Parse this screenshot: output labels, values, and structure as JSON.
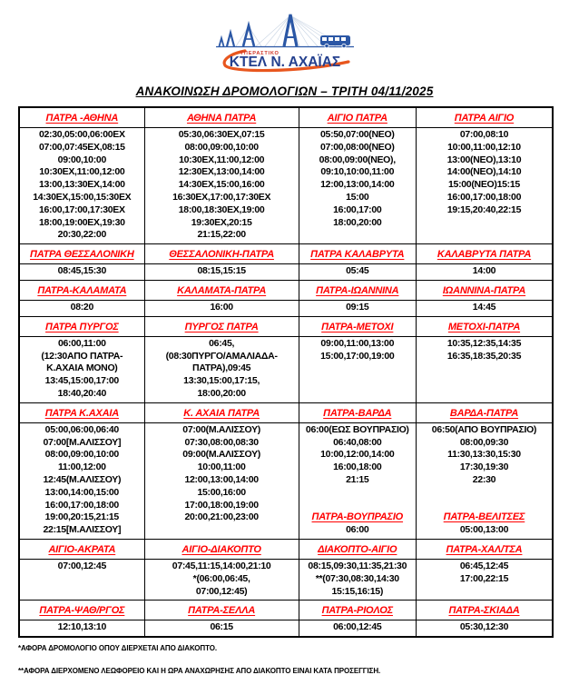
{
  "logo": {
    "small_text": "ΥΠΕΡΑΣΤΙΚΟ",
    "main_text": "ΚΤΕΛ Ν. ΑΧΑΪΑΣ"
  },
  "title": "ΑΝΑΚΟΙΝΩΣΗ ΔΡΟΜΟΛΟΓΙΩΝ – ΤΡΙΤΗ 04/11/2025",
  "colors": {
    "route_red": "#ff0000",
    "text_black": "#000000",
    "logo_blue": "#24408e",
    "logo_light_blue": "#2b57a5",
    "logo_orange": "#e8561e",
    "border_black": "#000000"
  },
  "table": {
    "column_widths_pct": [
      23.5,
      28.9,
      22.0,
      25.6
    ],
    "sections": [
      {
        "headers": [
          "ΠΑΤΡΑ -ΑΘΗΝΑ",
          "ΑΘΗΝΑ ΠΑΤΡΑ",
          "ΑΙΓΙΟ ΠΑΤΡΑ",
          "ΠΑΤΡΑ ΑΙΓΙΟ"
        ],
        "cells": [
          {
            "lines": [
              "02:30,05:00,06:00ΕΧ",
              "07:00,07:45ΕΧ,08:15",
              "09:00,10:00",
              "10:30ΕΧ,11:00,12:00",
              "13:00,13:30ΕΧ,14:00",
              "14:30ΕΧ,15:00,15:30ΕΧ",
              "16:00,17:00,17:30ΕΧ",
              "18:00,19:00ΕΧ,19:30",
              "20:30,22:00"
            ]
          },
          {
            "lines": [
              "05:30,06:30ΕΧ,07:15",
              "08:00,09:00,10:00",
              "10:30ΕΧ,11:00,12:00",
              "12:30ΕΧ,13:00,14:00",
              "14:30ΕΧ,15:00,16:00",
              "16:30ΕΧ,17:00,17:30ΕΧ",
              "18:00,18:30ΕΧ,19:00",
              "19:30ΕΧ,20:15",
              "21:15,22:00"
            ]
          },
          {
            "lines": [
              "05:50,07:00(ΝΕΟ)",
              "07:00,08:00(ΝΕΟ)",
              "08:00,09:00(ΝΕΟ),",
              "09:10,10:00,11:00",
              "12:00,13:00,14:00",
              "15:00",
              "16:00,17:00",
              "18:00,20:00"
            ]
          },
          {
            "lines": [
              "07:00,08:10",
              "10:00,11:00,12:10",
              "13:00(ΝΕΟ),13:10",
              "14:00(ΝΕΟ),14:10",
              "15:00(ΝΕΟ)15:15",
              "16:00,17:00,18:00",
              "19:15,20:40,22:15"
            ]
          }
        ]
      },
      {
        "headers": [
          "ΠΑΤΡΑ ΘΕΣΣΑΛΟΝΙΚΗ",
          "ΘΕΣΣΑΛΟΝΙΚΗ-ΠΑΤΡΑ",
          "ΠΑΤΡΑ ΚΑΛΑΒΡΥΤΑ",
          "ΚΑΛΑΒΡΥΤΑ ΠΑΤΡΑ"
        ],
        "cells": [
          {
            "lines": [
              "08:45,15:30"
            ]
          },
          {
            "lines": [
              "08:15,15:15"
            ]
          },
          {
            "lines": [
              "05:45"
            ]
          },
          {
            "lines": [
              "14:00"
            ]
          }
        ]
      },
      {
        "headers": [
          "ΠΑΤΡΑ-ΚΑΛΑΜΑΤΑ",
          "ΚΑΛΑΜΑΤΑ-ΠΑΤΡΑ",
          "ΠΑΤΡΑ-ΙΩΑΝΝΙΝΑ",
          "ΙΩΑΝΝΙΝΑ-ΠΑΤΡΑ"
        ],
        "cells": [
          {
            "lines": [
              "08:20"
            ]
          },
          {
            "lines": [
              "16:00"
            ]
          },
          {
            "lines": [
              "09:15"
            ]
          },
          {
            "lines": [
              "14:45"
            ]
          }
        ]
      },
      {
        "headers": [
          "ΠΑΤΡΑ ΠΥΡΓΟΣ",
          "ΠΥΡΓΟΣ ΠΑΤΡΑ",
          "ΠΑΤΡΑ-ΜΕΤΟΧΙ",
          "ΜΕΤΟΧΙ-ΠΑΤΡΑ"
        ],
        "cells": [
          {
            "lines": [
              "06:00,11:00",
              "(12:30ΑΠΟ ΠΑΤΡΑ-",
              "Κ.ΑΧΑΙΑ ΜΟΝΟ)",
              "13:45,15:00,17:00",
              "18:40,20:40"
            ]
          },
          {
            "lines": [
              "06:45,",
              "(08:30ΠΥΡΓΟ/ΑΜΑΛΙΑΔΑ-",
              "ΠΑΤΡΑ),09:45",
              "13:30,15:00,17:15,",
              "18:00,20:00"
            ]
          },
          {
            "lines": [
              "09:00,11:00,13:00",
              "15:00,17:00,19:00"
            ]
          },
          {
            "lines": [
              "10:35,12:35,14:35",
              "16:35,18:35,20:35"
            ]
          }
        ]
      },
      {
        "headers": [
          "ΠΑΤΡΑ Κ.ΑΧΑΙΑ",
          "Κ. ΑΧΑΙΑ ΠΑΤΡΑ",
          "ΠΑΤΡΑ-ΒΑΡΔΑ",
          "ΒΑΡΔΑ-ΠΑΤΡΑ"
        ],
        "cells": [
          {
            "lines": [
              "05:00,06:00,06:40",
              "07:00[Μ.ΑΛΙΣΣΟΥ]",
              "08:00,09:00,10:00",
              "11:00,12:00",
              "12:45(Μ.ΑΛΙΣΣΟΥ)",
              "13:00,14:00,15:00",
              "16:00,17:00,18:00",
              "19:00,20:15,21:15",
              "22:15[Μ.ΑΛΙΣΣΟΥ]"
            ]
          },
          {
            "lines": [
              "07:00(Μ.ΑΛΙΣΣΟΥ)",
              "07:30,08:00,08:30",
              "09:00(Μ.ΑΛΙΣΣΟΥ)",
              "10:00,11:00",
              "12:00,13:00,14:00",
              "15:00,16:00",
              "17:00,18:00,19:00",
              "20:00,21:00,23:00"
            ]
          },
          {
            "lines": [
              "06:00(ΕΩΣ ΒΟΥΠΡΑΣΙΟ)",
              "06:40,08:00",
              "10:00,12:00,14:00",
              "16:00,18:00",
              "21:15"
            ],
            "sub_header": "ΠΑΤΡΑ-ΒΟΥΠΡΑΣΙΟ",
            "sub_lines": [
              "06:00"
            ]
          },
          {
            "lines": [
              "06:50(ΑΠΟ ΒΟΥΠΡΑΣΙΟ)",
              "08:00,09:30",
              "11:30,13:30,15:30",
              "17:30,19:30",
              "22:30"
            ],
            "sub_header": "ΠΑΤΡΑ-ΒΕΛΙΤΣΕΣ",
            "sub_lines": [
              "05:00,13:00"
            ]
          }
        ]
      },
      {
        "headers": [
          "ΑΙΓΙΟ-ΑΚΡΑΤΑ",
          "ΑΙΓΙΟ-ΔΙΑΚΟΠΤΟ",
          "ΔΙΑΚΟΠΤΟ-ΑΙΓΙΟ",
          "ΠΑΤΡΑ-ΧΑΛ/ΤΣΑ"
        ],
        "cells": [
          {
            "lines": [
              "07:00,12:45"
            ]
          },
          {
            "lines": [
              "07:45,11:15,14:00,21:10",
              "*(06:00,06:45,",
              "07:00,12:45)"
            ]
          },
          {
            "lines": [
              "08:15,09:30,11:35,21:30",
              "**(07:30,08:30,14:30",
              "15:15,16:15)"
            ]
          },
          {
            "lines": [
              "06:45,12:45",
              "17:00,22:15"
            ]
          }
        ]
      },
      {
        "headers": [
          "ΠΑΤΡΑ-ΨΑΘ/ΡΓΟΣ",
          "ΠΑΤΡΑ-ΣΕΛΛΑ",
          "ΠΑΤΡΑ-ΡΙΟΛΟΣ",
          "ΠΑΤΡΑ-ΣΚΙΑΔΑ"
        ],
        "cells": [
          {
            "lines": [
              "12:10,13:10"
            ]
          },
          {
            "lines": [
              "06:15"
            ]
          },
          {
            "lines": [
              "06:00,12:45"
            ]
          },
          {
            "lines": [
              "05:30,12:30"
            ]
          }
        ]
      }
    ]
  },
  "footnotes": [
    "*ΑΦΟΡΑ ΔΡΟΜΟΛΟΓΙΟ ΟΠΟΥ ΔΙΕΡΧΕΤΑΙ ΑΠΟ ΔΙΑΚΟΠΤΟ.",
    "**ΑΦΟΡΑ ΔΙΕΡΧΟΜΕΝΟ ΛΕΩΦΟΡΕΙΟ ΚΑΙ Η ΩΡΑ ΑΝΑΧΩΡΗΣΗΣ ΑΠΟ ΔΙΑΚΟΠΤΟ ΕΙΝΑΙ ΚΑΤΑ ΠΡΟΣΕΓΓΙΣΗ."
  ]
}
